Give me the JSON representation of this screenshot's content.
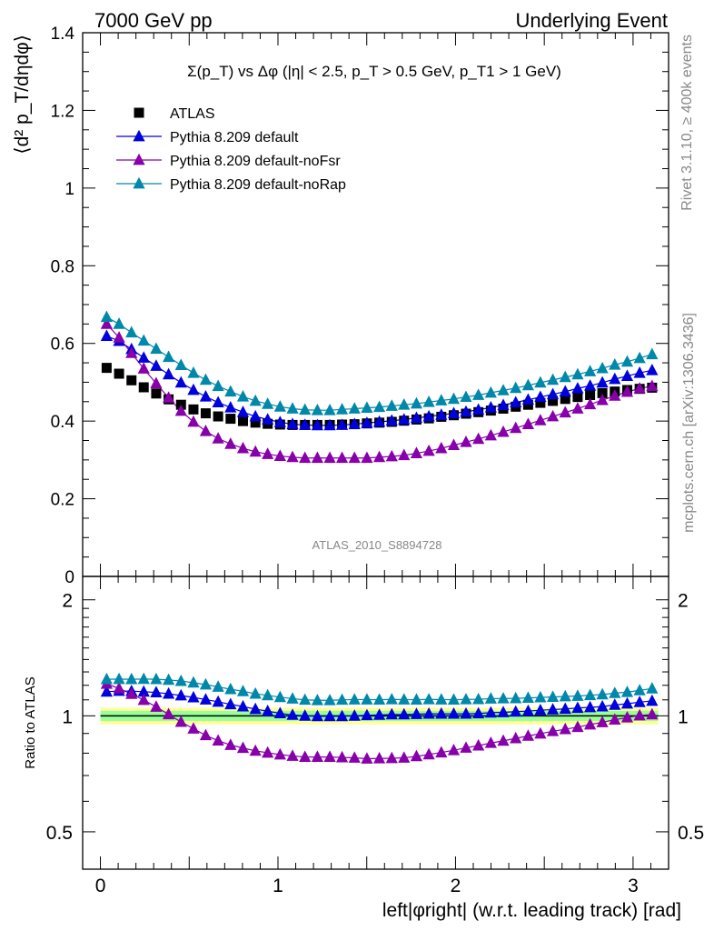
{
  "header": {
    "left": "7000 GeV pp",
    "right": "Underlying Event"
  },
  "side_labels": {
    "rivet": "Rivet 3.1.10, ≥ 400k events",
    "mcplots": "mcplots.cern.ch [arXiv:1306.3436]"
  },
  "colors": {
    "ATLAS": "#000000",
    "Pythia 8.209 default": "#0000dd",
    "Pythia 8.209 default-noFsr": "#8800aa",
    "Pythia 8.209 default-noRap": "#0088aa",
    "band_inner": "#99ff99",
    "band_outer": "#ffff99"
  },
  "chart_data": [
    {
      "type": "scatter",
      "title": "Σ(p_T) vs Δφ (|η| < 2.5, p_T > 0.5 GeV, p_T1 > 1 GeV)",
      "ylabel": "⟨d² p_T/dηdφ⟩",
      "watermark": "ATLAS_2010_S8894728",
      "xlim": [
        -0.1,
        3.2
      ],
      "ylim": [
        0,
        1.4
      ],
      "yticks": [
        "0",
        "0.2",
        "0.4",
        "0.6",
        "0.8",
        "1",
        "1.2",
        "1.4"
      ],
      "legend_position": "top-left",
      "x": [
        0.035,
        0.105,
        0.175,
        0.244,
        0.314,
        0.384,
        0.454,
        0.524,
        0.593,
        0.663,
        0.733,
        0.803,
        0.873,
        0.942,
        1.012,
        1.082,
        1.152,
        1.222,
        1.292,
        1.361,
        1.431,
        1.501,
        1.571,
        1.641,
        1.71,
        1.78,
        1.85,
        1.92,
        1.99,
        2.059,
        2.129,
        2.199,
        2.269,
        2.339,
        2.409,
        2.478,
        2.548,
        2.618,
        2.688,
        2.758,
        2.827,
        2.897,
        2.967,
        3.037,
        3.107
      ],
      "series": [
        {
          "name": "ATLAS",
          "marker": "square",
          "values": [
            0.537,
            0.522,
            0.505,
            0.487,
            0.471,
            0.456,
            0.442,
            0.43,
            0.42,
            0.412,
            0.406,
            0.4,
            0.396,
            0.393,
            0.391,
            0.39,
            0.39,
            0.39,
            0.39,
            0.391,
            0.392,
            0.394,
            0.396,
            0.398,
            0.401,
            0.404,
            0.407,
            0.411,
            0.415,
            0.419,
            0.423,
            0.427,
            0.432,
            0.437,
            0.442,
            0.447,
            0.452,
            0.457,
            0.462,
            0.467,
            0.472,
            0.476,
            0.48,
            0.483,
            0.486
          ]
        },
        {
          "name": "Pythia 8.209 default",
          "marker": "triangle",
          "values": [
            0.619,
            0.606,
            0.585,
            0.563,
            0.542,
            0.52,
            0.499,
            0.48,
            0.463,
            0.448,
            0.435,
            0.423,
            0.412,
            0.404,
            0.397,
            0.392,
            0.39,
            0.389,
            0.389,
            0.39,
            0.392,
            0.395,
            0.398,
            0.401,
            0.404,
            0.408,
            0.412,
            0.416,
            0.42,
            0.424,
            0.429,
            0.435,
            0.441,
            0.448,
            0.455,
            0.462,
            0.469,
            0.476,
            0.484,
            0.491,
            0.499,
            0.508,
            0.516,
            0.524,
            0.531
          ]
        },
        {
          "name": "Pythia 8.209 default-noFsr",
          "marker": "triangle",
          "values": [
            0.65,
            0.615,
            0.575,
            0.535,
            0.497,
            0.46,
            0.426,
            0.398,
            0.374,
            0.355,
            0.341,
            0.33,
            0.321,
            0.315,
            0.31,
            0.307,
            0.305,
            0.305,
            0.305,
            0.305,
            0.305,
            0.305,
            0.307,
            0.309,
            0.312,
            0.317,
            0.323,
            0.33,
            0.338,
            0.346,
            0.354,
            0.363,
            0.372,
            0.382,
            0.392,
            0.402,
            0.412,
            0.422,
            0.432,
            0.443,
            0.454,
            0.465,
            0.475,
            0.484,
            0.49
          ]
        },
        {
          "name": "Pythia 8.209 default-noRap",
          "marker": "triangle",
          "values": [
            0.668,
            0.65,
            0.628,
            0.607,
            0.586,
            0.565,
            0.544,
            0.524,
            0.506,
            0.49,
            0.476,
            0.463,
            0.452,
            0.444,
            0.437,
            0.432,
            0.429,
            0.428,
            0.428,
            0.43,
            0.432,
            0.434,
            0.436,
            0.439,
            0.442,
            0.445,
            0.449,
            0.453,
            0.457,
            0.462,
            0.467,
            0.473,
            0.479,
            0.485,
            0.492,
            0.499,
            0.506,
            0.513,
            0.52,
            0.528,
            0.536,
            0.545,
            0.553,
            0.562,
            0.572
          ]
        }
      ]
    },
    {
      "type": "scatter",
      "ylabel": "Ratio to ATLAS",
      "xlabel": "left|φright| (w.r.t. leading track) [rad]",
      "xlim": [
        -0.1,
        3.2
      ],
      "ylim": [
        0.4,
        2.3
      ],
      "y_scale": "log",
      "xticks": [
        "0",
        "1",
        "2",
        "3"
      ],
      "yticks": [
        "0.5",
        "1",
        "2"
      ],
      "reference_line": 1,
      "uncertainty_band": {
        "inner": [
          0.97,
          1.03
        ],
        "outer": [
          0.95,
          1.05
        ]
      },
      "x": [
        0.035,
        0.105,
        0.175,
        0.244,
        0.314,
        0.384,
        0.454,
        0.524,
        0.593,
        0.663,
        0.733,
        0.803,
        0.873,
        0.942,
        1.012,
        1.082,
        1.152,
        1.222,
        1.292,
        1.361,
        1.431,
        1.501,
        1.571,
        1.641,
        1.71,
        1.78,
        1.85,
        1.92,
        1.99,
        2.059,
        2.129,
        2.199,
        2.269,
        2.339,
        2.409,
        2.478,
        2.548,
        2.618,
        2.688,
        2.758,
        2.827,
        2.897,
        2.967,
        3.037,
        3.107
      ],
      "series": [
        {
          "name": "Pythia 8.209 default",
          "values": [
            1.155,
            1.16,
            1.159,
            1.155,
            1.15,
            1.141,
            1.129,
            1.116,
            1.102,
            1.087,
            1.071,
            1.057,
            1.041,
            1.028,
            1.015,
            1.005,
            1.0,
            0.997,
            0.997,
            0.997,
            1.0,
            1.003,
            1.005,
            1.008,
            1.008,
            1.01,
            1.012,
            1.012,
            1.012,
            1.012,
            1.014,
            1.019,
            1.021,
            1.025,
            1.029,
            1.034,
            1.038,
            1.042,
            1.048,
            1.052,
            1.057,
            1.067,
            1.075,
            1.085,
            1.093
          ]
        },
        {
          "name": "Pythia 8.209 default-noFsr",
          "values": [
            1.21,
            1.178,
            1.139,
            1.099,
            1.055,
            1.009,
            0.964,
            0.926,
            0.89,
            0.862,
            0.84,
            0.825,
            0.811,
            0.802,
            0.793,
            0.787,
            0.782,
            0.782,
            0.782,
            0.78,
            0.778,
            0.774,
            0.775,
            0.776,
            0.778,
            0.785,
            0.794,
            0.803,
            0.814,
            0.826,
            0.837,
            0.85,
            0.861,
            0.874,
            0.887,
            0.899,
            0.912,
            0.923,
            0.935,
            0.949,
            0.962,
            0.977,
            0.99,
            1.002,
            1.008
          ]
        },
        {
          "name": "Pythia 8.209 default-noRap",
          "values": [
            1.244,
            1.245,
            1.244,
            1.246,
            1.244,
            1.239,
            1.231,
            1.219,
            1.205,
            1.189,
            1.172,
            1.158,
            1.141,
            1.13,
            1.118,
            1.108,
            1.1,
            1.097,
            1.097,
            1.1,
            1.102,
            1.102,
            1.101,
            1.103,
            1.102,
            1.101,
            1.103,
            1.102,
            1.101,
            1.103,
            1.104,
            1.108,
            1.109,
            1.11,
            1.113,
            1.116,
            1.119,
            1.123,
            1.126,
            1.131,
            1.136,
            1.145,
            1.152,
            1.164,
            1.177
          ]
        }
      ]
    }
  ]
}
